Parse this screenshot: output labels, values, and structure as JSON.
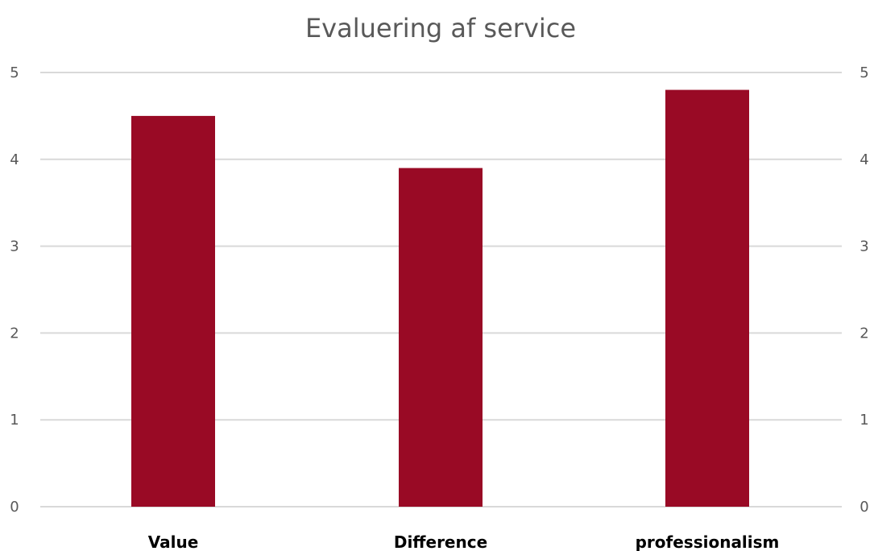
{
  "chart_data": {
    "type": "bar",
    "title": "Evaluering af service",
    "categories": [
      "Value",
      "Difference",
      "professionalism"
    ],
    "values": [
      4.5,
      3.9,
      4.8
    ],
    "ylim": [
      0,
      5
    ],
    "yticks": [
      "0",
      "1",
      "2",
      "3",
      "4",
      "5"
    ],
    "secondary_yticks": [
      "0",
      "1",
      "2",
      "3",
      "4",
      "5"
    ],
    "grid": true,
    "legend": "none",
    "xlabel": "",
    "ylabel": ""
  },
  "colors": {
    "bar": "#990a25",
    "grid": "#d9d9d9",
    "text": "#595959",
    "category_text": "#000000"
  }
}
